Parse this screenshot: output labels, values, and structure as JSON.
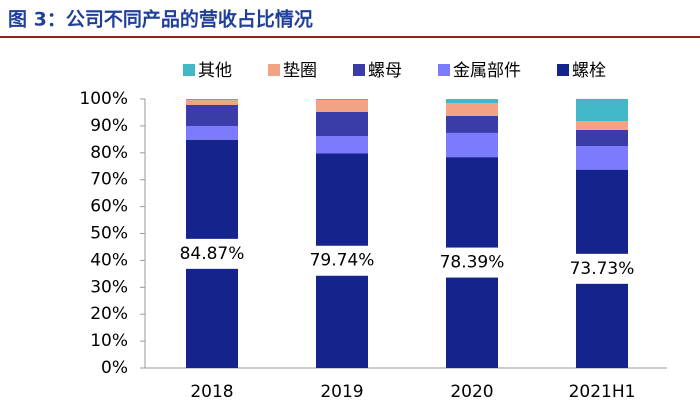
{
  "chart_data": {
    "type": "stacked_bar",
    "title": "图 3：公司不同产品的营收占比情况",
    "categories": [
      "2018",
      "2019",
      "2020",
      "2021H1"
    ],
    "series": [
      {
        "name": "螺栓",
        "color": "#15238c",
        "values": [
          84.87,
          79.74,
          78.39,
          73.73
        ],
        "value_labels": [
          "84.87%",
          "79.74%",
          "78.39%",
          "73.73%"
        ]
      },
      {
        "name": "金属部件",
        "color": "#7b7bfb",
        "values": [
          5.1,
          6.5,
          9.0,
          8.8
        ]
      },
      {
        "name": "螺母",
        "color": "#3c3ca8",
        "values": [
          7.8,
          9.0,
          6.3,
          6.0
        ]
      },
      {
        "name": "垫圈",
        "color": "#f2a384",
        "values": [
          1.8,
          4.4,
          4.8,
          3.3
        ]
      },
      {
        "name": "其他",
        "color": "#42b7c8",
        "values": [
          0.43,
          0.36,
          1.5,
          8.2
        ]
      }
    ],
    "ylim": [
      0,
      100
    ],
    "yticks": [
      {
        "value": 0,
        "label": "0%"
      },
      {
        "value": 10,
        "label": "10%"
      },
      {
        "value": 20,
        "label": "20%"
      },
      {
        "value": 30,
        "label": "30%"
      },
      {
        "value": 40,
        "label": "40%"
      },
      {
        "value": 50,
        "label": "50%"
      },
      {
        "value": 60,
        "label": "60%"
      },
      {
        "value": 70,
        "label": "70%"
      },
      {
        "value": 80,
        "label": "80%"
      },
      {
        "value": 90,
        "label": "90%"
      },
      {
        "value": 100,
        "label": "100%"
      }
    ],
    "legend": "top"
  }
}
